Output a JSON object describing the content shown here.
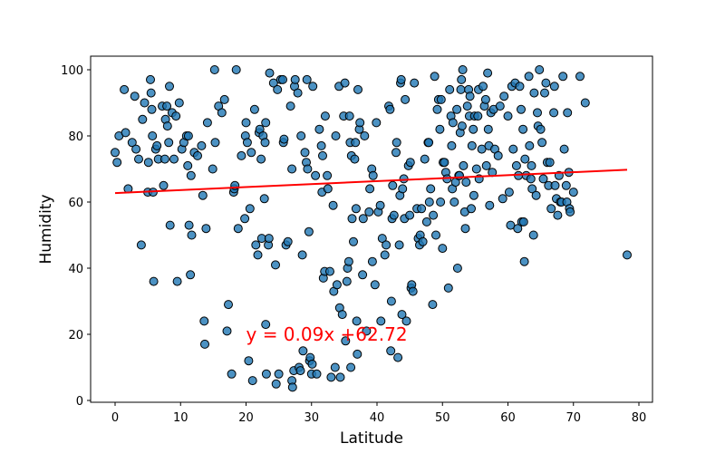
{
  "chart_data": {
    "type": "scatter",
    "title": "",
    "xlabel": "Latitude",
    "ylabel": "Humidity",
    "xlim": [
      -3.5,
      82
    ],
    "ylim": [
      -1,
      104
    ],
    "xticks": [
      0,
      10,
      20,
      30,
      40,
      50,
      60,
      70,
      80
    ],
    "yticks": [
      0,
      20,
      40,
      60,
      80,
      100
    ],
    "grid": false,
    "legend": null,
    "marker_color": "#1f77b4",
    "marker_edge_color": "#000000",
    "marker_alpha": 0.8,
    "regression": {
      "slope": 0.09,
      "intercept": 62.72,
      "x_range": [
        0.0,
        78.2
      ],
      "color": "#ff0000",
      "equation_label": "y = 0.09x +62.72",
      "label_position": {
        "x": 20,
        "y": 20
      }
    },
    "points": [
      [
        0.0,
        75
      ],
      [
        0.3,
        72
      ],
      [
        0.6,
        80
      ],
      [
        1.4,
        94
      ],
      [
        1.6,
        81
      ],
      [
        2.0,
        64
      ],
      [
        2.6,
        78
      ],
      [
        3.0,
        92
      ],
      [
        3.2,
        76
      ],
      [
        3.6,
        73
      ],
      [
        4.0,
        47
      ],
      [
        4.2,
        85
      ],
      [
        4.5,
        90
      ],
      [
        5.0,
        63
      ],
      [
        5.1,
        72
      ],
      [
        5.4,
        97
      ],
      [
        5.5,
        93
      ],
      [
        5.6,
        88
      ],
      [
        5.7,
        80
      ],
      [
        5.8,
        63
      ],
      [
        5.9,
        36
      ],
      [
        6.2,
        76
      ],
      [
        6.4,
        77
      ],
      [
        6.6,
        73
      ],
      [
        7.2,
        89
      ],
      [
        7.4,
        65
      ],
      [
        7.6,
        73
      ],
      [
        7.7,
        85
      ],
      [
        7.9,
        89
      ],
      [
        8.0,
        83
      ],
      [
        8.2,
        78
      ],
      [
        8.3,
        95
      ],
      [
        8.4,
        53
      ],
      [
        8.7,
        87
      ],
      [
        9.0,
        73
      ],
      [
        9.3,
        86
      ],
      [
        9.5,
        36
      ],
      [
        9.8,
        90
      ],
      [
        10.2,
        76
      ],
      [
        10.5,
        78
      ],
      [
        10.9,
        80
      ],
      [
        11.1,
        71
      ],
      [
        11.2,
        80
      ],
      [
        11.3,
        53
      ],
      [
        11.5,
        38
      ],
      [
        11.6,
        68
      ],
      [
        11.7,
        50
      ],
      [
        12.1,
        75
      ],
      [
        12.6,
        74
      ],
      [
        13.2,
        77
      ],
      [
        13.4,
        62
      ],
      [
        13.6,
        24
      ],
      [
        13.7,
        17
      ],
      [
        13.9,
        52
      ],
      [
        14.1,
        84
      ],
      [
        14.9,
        70
      ],
      [
        15.2,
        100
      ],
      [
        15.3,
        78
      ],
      [
        15.8,
        89
      ],
      [
        16.3,
        87
      ],
      [
        16.7,
        91
      ],
      [
        17.1,
        21
      ],
      [
        17.3,
        29
      ],
      [
        17.8,
        8
      ],
      [
        18.1,
        63
      ],
      [
        18.2,
        64
      ],
      [
        18.3,
        65
      ],
      [
        18.5,
        100
      ],
      [
        18.8,
        52
      ],
      [
        19.3,
        74
      ],
      [
        19.8,
        55
      ],
      [
        19.9,
        80
      ],
      [
        20.0,
        84
      ],
      [
        20.2,
        78
      ],
      [
        20.4,
        12
      ],
      [
        20.6,
        58
      ],
      [
        20.8,
        75
      ],
      [
        21.0,
        6
      ],
      [
        21.3,
        88
      ],
      [
        21.5,
        47
      ],
      [
        21.8,
        44
      ],
      [
        22.0,
        81
      ],
      [
        22.1,
        82
      ],
      [
        22.3,
        73
      ],
      [
        22.4,
        49
      ],
      [
        22.6,
        80
      ],
      [
        22.8,
        61
      ],
      [
        22.9,
        78
      ],
      [
        23.0,
        84
      ],
      [
        23.0,
        23
      ],
      [
        23.1,
        8
      ],
      [
        23.4,
        47
      ],
      [
        23.5,
        49
      ],
      [
        23.6,
        99
      ],
      [
        24.2,
        96
      ],
      [
        24.5,
        41
      ],
      [
        24.6,
        5
      ],
      [
        24.8,
        94
      ],
      [
        25.0,
        8
      ],
      [
        25.3,
        97
      ],
      [
        25.6,
        97
      ],
      [
        25.7,
        78
      ],
      [
        25.8,
        79
      ],
      [
        26.1,
        47
      ],
      [
        26.4,
        48
      ],
      [
        26.8,
        89
      ],
      [
        27.0,
        6
      ],
      [
        27.0,
        70
      ],
      [
        27.1,
        4
      ],
      [
        27.3,
        9
      ],
      [
        27.4,
        95
      ],
      [
        27.5,
        97
      ],
      [
        27.9,
        93
      ],
      [
        28.1,
        10
      ],
      [
        28.3,
        9
      ],
      [
        28.4,
        80
      ],
      [
        28.6,
        44
      ],
      [
        28.7,
        15
      ],
      [
        29.0,
        75
      ],
      [
        29.2,
        72
      ],
      [
        29.3,
        97
      ],
      [
        29.4,
        70
      ],
      [
        29.6,
        51
      ],
      [
        29.7,
        12
      ],
      [
        29.8,
        13
      ],
      [
        30.0,
        8
      ],
      [
        30.1,
        11
      ],
      [
        30.2,
        95
      ],
      [
        30.6,
        68
      ],
      [
        30.8,
        8
      ],
      [
        31.2,
        82
      ],
      [
        31.5,
        77
      ],
      [
        31.6,
        63
      ],
      [
        31.7,
        74
      ],
      [
        31.8,
        37
      ],
      [
        32.0,
        39
      ],
      [
        32.1,
        86
      ],
      [
        32.4,
        68
      ],
      [
        32.5,
        64
      ],
      [
        32.8,
        39
      ],
      [
        33.0,
        7
      ],
      [
        33.3,
        59
      ],
      [
        33.4,
        33
      ],
      [
        33.6,
        10
      ],
      [
        33.7,
        80
      ],
      [
        33.9,
        35
      ],
      [
        34.2,
        95
      ],
      [
        34.3,
        28
      ],
      [
        34.4,
        7
      ],
      [
        34.7,
        26
      ],
      [
        34.9,
        86
      ],
      [
        35.1,
        96
      ],
      [
        35.2,
        18
      ],
      [
        35.4,
        36
      ],
      [
        35.5,
        40
      ],
      [
        35.7,
        42
      ],
      [
        35.8,
        86
      ],
      [
        35.9,
        78
      ],
      [
        36.0,
        10
      ],
      [
        36.1,
        74
      ],
      [
        36.2,
        55
      ],
      [
        36.4,
        48
      ],
      [
        36.6,
        73
      ],
      [
        36.7,
        78
      ],
      [
        36.8,
        58
      ],
      [
        36.9,
        24
      ],
      [
        37.0,
        14
      ],
      [
        37.1,
        94
      ],
      [
        37.3,
        82
      ],
      [
        37.4,
        84
      ],
      [
        37.8,
        38
      ],
      [
        37.9,
        55
      ],
      [
        38.1,
        80
      ],
      [
        38.4,
        21
      ],
      [
        38.8,
        57
      ],
      [
        38.9,
        64
      ],
      [
        39.2,
        70
      ],
      [
        39.3,
        42
      ],
      [
        39.4,
        68
      ],
      [
        39.7,
        35
      ],
      [
        39.9,
        84
      ],
      [
        40.2,
        57
      ],
      [
        40.5,
        59
      ],
      [
        40.6,
        24
      ],
      [
        40.8,
        49
      ],
      [
        41.2,
        44
      ],
      [
        41.4,
        47
      ],
      [
        41.8,
        89
      ],
      [
        42.0,
        88
      ],
      [
        42.1,
        15
      ],
      [
        42.2,
        30
      ],
      [
        42.3,
        55
      ],
      [
        42.4,
        65
      ],
      [
        42.6,
        56
      ],
      [
        42.9,
        75
      ],
      [
        43.0,
        78
      ],
      [
        43.2,
        13
      ],
      [
        43.4,
        47
      ],
      [
        43.5,
        62
      ],
      [
        43.6,
        96
      ],
      [
        43.7,
        97
      ],
      [
        43.8,
        26
      ],
      [
        43.9,
        64
      ],
      [
        44.1,
        67
      ],
      [
        44.2,
        55
      ],
      [
        44.3,
        91
      ],
      [
        44.5,
        24
      ],
      [
        44.8,
        71
      ],
      [
        45.0,
        56
      ],
      [
        45.1,
        72
      ],
      [
        45.2,
        34
      ],
      [
        45.3,
        35
      ],
      [
        45.5,
        33
      ],
      [
        45.7,
        96
      ],
      [
        46.1,
        58
      ],
      [
        46.3,
        49
      ],
      [
        46.5,
        47
      ],
      [
        46.6,
        50
      ],
      [
        46.8,
        58
      ],
      [
        47.0,
        48
      ],
      [
        47.3,
        73
      ],
      [
        47.6,
        54
      ],
      [
        47.8,
        78
      ],
      [
        47.9,
        78
      ],
      [
        48.0,
        60
      ],
      [
        48.2,
        64
      ],
      [
        48.5,
        29
      ],
      [
        48.6,
        56
      ],
      [
        48.8,
        98
      ],
      [
        49.0,
        50
      ],
      [
        49.2,
        88
      ],
      [
        49.4,
        91
      ],
      [
        49.6,
        82
      ],
      [
        49.7,
        60
      ],
      [
        49.8,
        91
      ],
      [
        50.0,
        46
      ],
      [
        50.1,
        72
      ],
      [
        50.3,
        72
      ],
      [
        50.5,
        69
      ],
      [
        50.7,
        67
      ],
      [
        50.9,
        34
      ],
      [
        51.1,
        94
      ],
      [
        51.3,
        86
      ],
      [
        51.4,
        77
      ],
      [
        51.5,
        64
      ],
      [
        51.6,
        84
      ],
      [
        51.8,
        60
      ],
      [
        52.0,
        66
      ],
      [
        52.2,
        88
      ],
      [
        52.3,
        40
      ],
      [
        52.5,
        68
      ],
      [
        52.6,
        68
      ],
      [
        52.7,
        81
      ],
      [
        52.8,
        94
      ],
      [
        52.9,
        97
      ],
      [
        53.0,
        83
      ],
      [
        53.1,
        100
      ],
      [
        53.2,
        71
      ],
      [
        53.4,
        57
      ],
      [
        53.5,
        52
      ],
      [
        53.6,
        66
      ],
      [
        53.8,
        89
      ],
      [
        54.0,
        94
      ],
      [
        54.1,
        86
      ],
      [
        54.2,
        92
      ],
      [
        54.4,
        58
      ],
      [
        54.5,
        77
      ],
      [
        54.7,
        82
      ],
      [
        54.8,
        62
      ],
      [
        54.9,
        86
      ],
      [
        55.2,
        70
      ],
      [
        55.4,
        86
      ],
      [
        55.5,
        94
      ],
      [
        55.6,
        67
      ],
      [
        56.0,
        76
      ],
      [
        56.2,
        95
      ],
      [
        56.4,
        89
      ],
      [
        56.6,
        91
      ],
      [
        56.7,
        71
      ],
      [
        56.9,
        99
      ],
      [
        57.0,
        82
      ],
      [
        57.1,
        77
      ],
      [
        57.2,
        59
      ],
      [
        57.4,
        87
      ],
      [
        57.6,
        69
      ],
      [
        57.8,
        88
      ],
      [
        58.0,
        76
      ],
      [
        58.5,
        74
      ],
      [
        58.8,
        89
      ],
      [
        59.2,
        61
      ],
      [
        59.4,
        92
      ],
      [
        60.0,
        86
      ],
      [
        60.2,
        63
      ],
      [
        60.4,
        53
      ],
      [
        60.6,
        95
      ],
      [
        60.8,
        76
      ],
      [
        61.1,
        96
      ],
      [
        61.3,
        71
      ],
      [
        61.5,
        52
      ],
      [
        61.6,
        68
      ],
      [
        61.8,
        95
      ],
      [
        62.0,
        88
      ],
      [
        62.1,
        54
      ],
      [
        62.3,
        82
      ],
      [
        62.4,
        54
      ],
      [
        62.5,
        42
      ],
      [
        62.6,
        73
      ],
      [
        62.8,
        68
      ],
      [
        63.2,
        98
      ],
      [
        63.3,
        77
      ],
      [
        63.5,
        67
      ],
      [
        63.6,
        71
      ],
      [
        63.7,
        64
      ],
      [
        63.9,
        50
      ],
      [
        64.0,
        93
      ],
      [
        64.3,
        62
      ],
      [
        64.5,
        87
      ],
      [
        64.6,
        83
      ],
      [
        64.8,
        100
      ],
      [
        65.0,
        82
      ],
      [
        65.2,
        78
      ],
      [
        65.4,
        67
      ],
      [
        65.6,
        93
      ],
      [
        65.8,
        96
      ],
      [
        66.0,
        72
      ],
      [
        66.2,
        65
      ],
      [
        66.4,
        72
      ],
      [
        66.6,
        58
      ],
      [
        67.0,
        87
      ],
      [
        67.1,
        95
      ],
      [
        67.2,
        65
      ],
      [
        67.4,
        61
      ],
      [
        67.6,
        56
      ],
      [
        67.8,
        68
      ],
      [
        68.0,
        60
      ],
      [
        68.2,
        60
      ],
      [
        68.4,
        98
      ],
      [
        68.6,
        76
      ],
      [
        68.9,
        65
      ],
      [
        69.0,
        60
      ],
      [
        69.1,
        87
      ],
      [
        69.3,
        69
      ],
      [
        69.4,
        58
      ],
      [
        69.5,
        57
      ],
      [
        70.0,
        63
      ],
      [
        71.0,
        98
      ],
      [
        71.8,
        90
      ],
      [
        78.2,
        44
      ]
    ]
  }
}
